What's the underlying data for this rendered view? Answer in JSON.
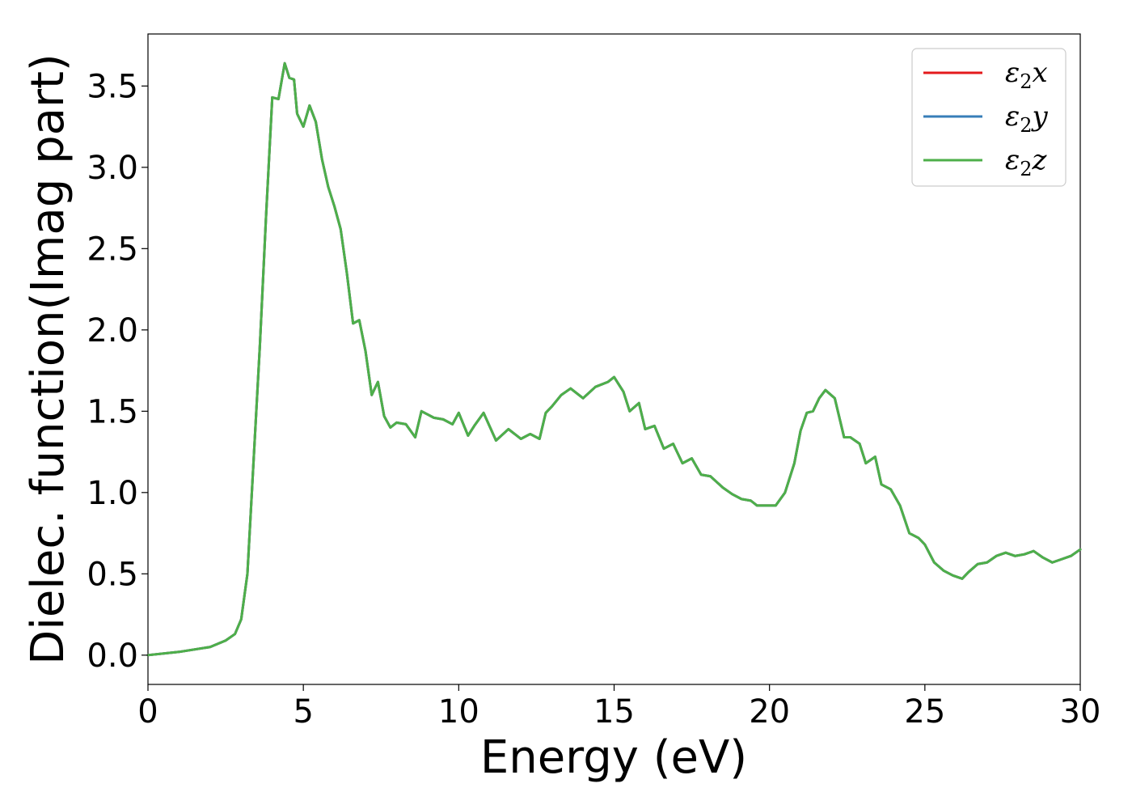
{
  "chart_data": {
    "type": "line",
    "title": "",
    "xlabel": "Energy (eV)",
    "ylabel": "Dielec. function(Imag part)",
    "xlim": [
      0,
      30
    ],
    "ylim": [
      -0.18,
      3.82
    ],
    "xticks": [
      0,
      5,
      10,
      15,
      20,
      25,
      30
    ],
    "xtick_labels": [
      "0",
      "5",
      "10",
      "15",
      "20",
      "25",
      "30"
    ],
    "yticks": [
      0.0,
      0.5,
      1.0,
      1.5,
      2.0,
      2.5,
      3.0,
      3.5
    ],
    "ytick_labels": [
      "0.0",
      "0.5",
      "1.0",
      "1.5",
      "2.0",
      "2.5",
      "3.0",
      "3.5"
    ],
    "grid": false,
    "legend_position": "top-right",
    "series": [
      {
        "name": "ε₂x",
        "label_base": "ε",
        "label_sub": "2",
        "label_suffix": "x",
        "color": "#e41a1c",
        "ref": "z"
      },
      {
        "name": "ε₂y",
        "label_base": "ε",
        "label_sub": "2",
        "label_suffix": "y",
        "color": "#377eb8",
        "ref": "z"
      },
      {
        "name": "ε₂z",
        "label_base": "ε",
        "label_sub": "2",
        "label_suffix": "z",
        "color": "#4daf4a",
        "x": [
          0,
          1,
          2,
          2.5,
          2.8,
          3.0,
          3.2,
          3.4,
          3.5,
          3.6,
          3.8,
          4.0,
          4.2,
          4.4,
          4.55,
          4.7,
          4.8,
          5.0,
          5.2,
          5.4,
          5.6,
          5.8,
          6.0,
          6.2,
          6.4,
          6.6,
          6.8,
          7.0,
          7.2,
          7.4,
          7.6,
          7.8,
          8.0,
          8.3,
          8.6,
          8.8,
          9.0,
          9.2,
          9.5,
          9.8,
          10.0,
          10.3,
          10.5,
          10.8,
          11.2,
          11.6,
          12.0,
          12.3,
          12.6,
          12.8,
          13.0,
          13.3,
          13.6,
          14.0,
          14.4,
          14.8,
          15.0,
          15.3,
          15.5,
          15.8,
          16.0,
          16.3,
          16.6,
          16.9,
          17.2,
          17.5,
          17.8,
          18.1,
          18.5,
          18.8,
          19.1,
          19.4,
          19.6,
          19.9,
          20.2,
          20.5,
          20.8,
          21.0,
          21.2,
          21.4,
          21.6,
          21.8,
          22.1,
          22.4,
          22.6,
          22.9,
          23.1,
          23.4,
          23.6,
          23.9,
          24.2,
          24.5,
          24.8,
          25.0,
          25.3,
          25.6,
          25.9,
          26.2,
          26.4,
          26.7,
          27.0,
          27.3,
          27.6,
          27.9,
          28.2,
          28.5,
          28.8,
          29.1,
          29.4,
          29.7,
          30.0
        ],
        "values": [
          0.0,
          0.02,
          0.05,
          0.09,
          0.13,
          0.22,
          0.5,
          1.2,
          1.55,
          1.9,
          2.7,
          3.43,
          3.42,
          3.64,
          3.55,
          3.54,
          3.33,
          3.25,
          3.38,
          3.28,
          3.05,
          2.88,
          2.76,
          2.62,
          2.35,
          2.04,
          2.06,
          1.87,
          1.6,
          1.68,
          1.47,
          1.4,
          1.43,
          1.42,
          1.34,
          1.5,
          1.48,
          1.46,
          1.45,
          1.42,
          1.49,
          1.35,
          1.41,
          1.49,
          1.32,
          1.39,
          1.33,
          1.36,
          1.33,
          1.49,
          1.53,
          1.6,
          1.64,
          1.58,
          1.65,
          1.68,
          1.71,
          1.62,
          1.5,
          1.55,
          1.39,
          1.41,
          1.27,
          1.3,
          1.18,
          1.21,
          1.11,
          1.1,
          1.03,
          0.99,
          0.96,
          0.95,
          0.92,
          0.92,
          0.92,
          1.0,
          1.18,
          1.38,
          1.49,
          1.5,
          1.58,
          1.63,
          1.58,
          1.34,
          1.34,
          1.3,
          1.18,
          1.22,
          1.05,
          1.02,
          0.92,
          0.75,
          0.72,
          0.68,
          0.57,
          0.52,
          0.49,
          0.47,
          0.51,
          0.56,
          0.57,
          0.61,
          0.63,
          0.61,
          0.62,
          0.64,
          0.6,
          0.57,
          0.59,
          0.61,
          0.65
        ]
      }
    ]
  }
}
